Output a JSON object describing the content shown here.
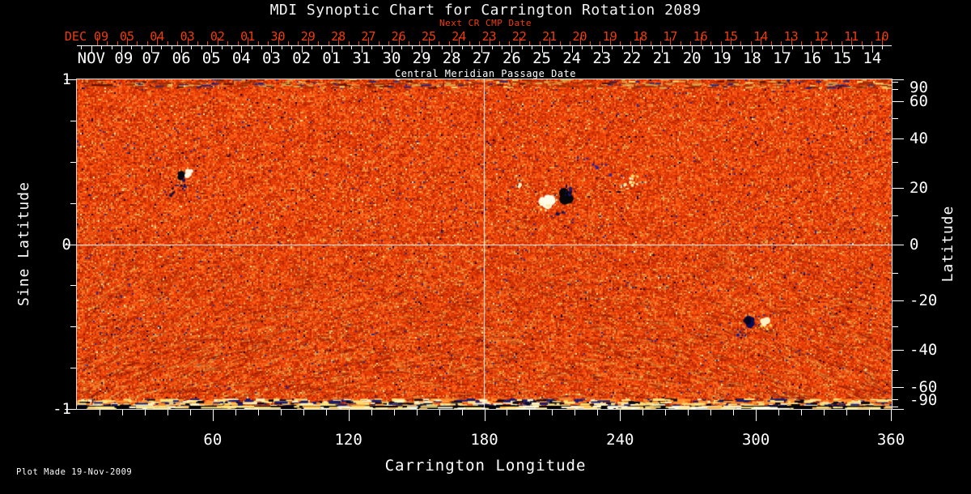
{
  "title": "MDI Synoptic Chart for Carrington Rotation 2089",
  "footer": "Plot Made 19-Nov-2009",
  "colors": {
    "background": "#000000",
    "axis_red": "#f23c0a",
    "axis_white": "#ffffff",
    "map_base": "#e63d06",
    "crosshair": "#ffffff"
  },
  "top_red_axis": {
    "title": "Next CR CMP Date",
    "month_label": "DEC 09",
    "day_labels": [
      "05",
      "04",
      "03",
      "02",
      "01",
      "30",
      "29",
      "28",
      "27",
      "26",
      "25",
      "24",
      "23",
      "22",
      "21",
      "20",
      "19",
      "18",
      "17",
      "16",
      "15",
      "14",
      "13",
      "12",
      "11",
      "10"
    ]
  },
  "top_white_axis": {
    "title": "Central Meridian Passage Date",
    "month_label": "NOV 09",
    "day_labels": [
      "07",
      "06",
      "05",
      "04",
      "03",
      "02",
      "01",
      "31",
      "30",
      "29",
      "28",
      "27",
      "26",
      "25",
      "24",
      "23",
      "22",
      "21",
      "20",
      "19",
      "18",
      "17",
      "16",
      "15",
      "14"
    ]
  },
  "x_axis": {
    "title": "Carrington Longitude",
    "major_ticks": [
      "60",
      "120",
      "180",
      "240",
      "300",
      "360"
    ],
    "range": [
      0,
      360
    ],
    "minor_step_degrees": 10
  },
  "y_axis_left": {
    "title": "Sine Latitude",
    "major_ticks": [
      "1",
      "0",
      "-1"
    ],
    "minor_ticks_sine": [
      0.75,
      0.5,
      0.25,
      -0.25,
      -0.5,
      -0.75
    ],
    "range": [
      -1,
      1
    ]
  },
  "y_axis_right": {
    "title": "Latitude",
    "major_ticks": [
      "90",
      "60",
      "40",
      "20",
      "0",
      "-20",
      "-40",
      "-60",
      "-90"
    ],
    "minor_ticks": [
      80,
      70,
      50,
      30,
      10,
      -10,
      -30,
      -50,
      -70,
      -80
    ]
  },
  "chart_data": {
    "type": "heatmap",
    "title": "MDI Synoptic Chart for Carrington Rotation 2089",
    "xlabel": "Carrington Longitude",
    "ylabel_left": "Sine Latitude",
    "ylabel_right": "Latitude",
    "xlim": [
      0,
      360
    ],
    "ylim_sine_latitude": [
      -1,
      1
    ],
    "x_major_ticks": [
      60,
      120,
      180,
      240,
      300,
      360
    ],
    "left_ticks_sine": [
      1,
      0,
      -1
    ],
    "right_ticks_latitude": [
      90,
      60,
      40,
      20,
      0,
      -20,
      -40,
      -60,
      -90
    ],
    "reference_lines": {
      "carrington_longitude": 180,
      "sine_latitude": 0
    },
    "colormap_appearance": "saturated orange-red magnetogram noise with yellow/blue speckle and diagonal streaking toward south pole",
    "active_regions": [
      {
        "carrington_longitude": 46,
        "latitude": 25,
        "description": "small bipolar active region, dark leading / bright trailing"
      },
      {
        "carrington_longitude": 212,
        "latitude": 16,
        "description": "large bipolar active region, bright west / dark east, with surrounding plage speckle"
      },
      {
        "carrington_longitude": 299,
        "latitude": -29,
        "description": "bipolar active region, dark west / bright east"
      }
    ]
  }
}
